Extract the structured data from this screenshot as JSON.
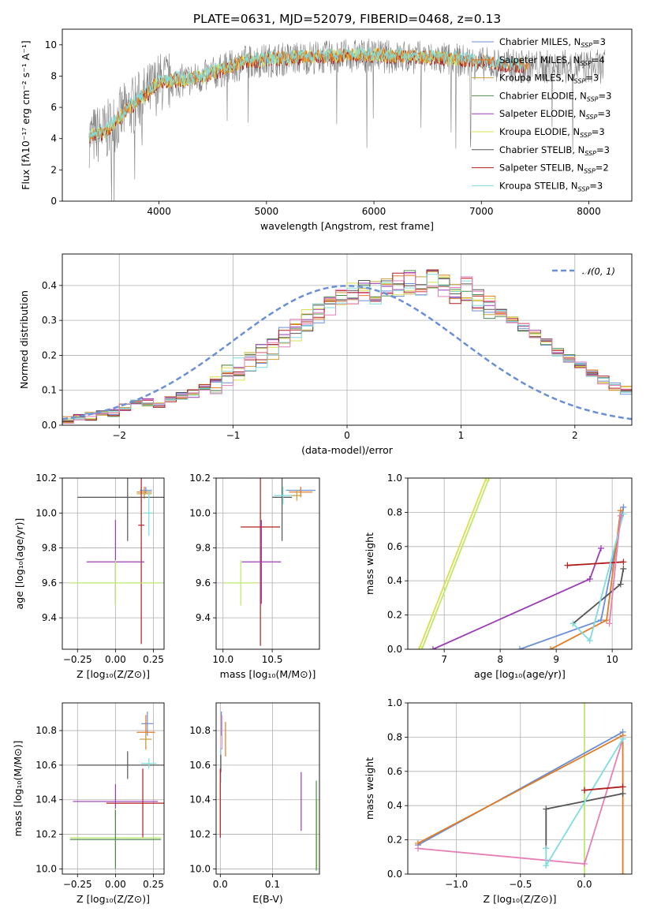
{
  "title": "PLATE=0631, MJD=52079, FIBERID=0468, z=0.13",
  "colors": {
    "chabrier_miles": "#6a8fd6",
    "salpeter_miles": "#e07b24",
    "kroupa_miles": "#c8a13a",
    "chabrier_elodie": "#4e8c4e",
    "salpeter_elodie": "#9b3bb5",
    "kroupa_elodie": "#d9e04a",
    "chabrier_stelib": "#555555",
    "salpeter_stelib": "#b01e1e",
    "kroupa_stelib": "#7fdcdc",
    "lime": "#bde86a",
    "pink": "#e57fb6",
    "gray_data": "#808080"
  },
  "chart_data": [
    {
      "id": "spectrum",
      "type": "line",
      "xlabel": "wavelength [Angstrom, rest frame]",
      "ylabel": "Flux [fλ10⁻¹⁷ erg cm⁻² s⁻¹ A⁻¹]",
      "xlim": [
        3100,
        8400
      ],
      "ylim": [
        0,
        11
      ],
      "xticks": [
        "4000",
        "5000",
        "6000",
        "7000",
        "8000"
      ],
      "yticks": [
        "0",
        "2",
        "4",
        "6",
        "8",
        "10"
      ],
      "legend_position": "right",
      "legend": [
        "Chabrier MILES, N_SSP=3",
        "Salpeter MILES, N_SSP=4",
        "Kroupa MILES, N_SSP=3",
        "Chabrier ELODIE, N_SSP=3",
        "Salpeter ELODIE, N_SSP=3",
        "Kroupa ELODIE, N_SSP=3",
        "Chabrier STELIB, N_SSP=3",
        "Salpeter STELIB, N_SSP=2",
        "Kroupa STELIB, N_SSP=3"
      ],
      "model_x": [
        3350,
        3500,
        3700,
        3900,
        4000,
        4200,
        4400,
        4600,
        4800,
        5000,
        5200,
        5400,
        5600,
        5800,
        6000,
        6200,
        6400,
        6600,
        6800,
        7000,
        7200,
        7400
      ],
      "model_y": [
        4.1,
        4.4,
        5.8,
        6.9,
        7.6,
        7.7,
        7.9,
        8.4,
        8.9,
        9.0,
        9.1,
        9.2,
        9.2,
        9.3,
        9.3,
        9.2,
        9.2,
        9.1,
        9.0,
        8.8,
        8.7,
        8.6
      ]
    },
    {
      "id": "residual_hist",
      "type": "area",
      "xlabel": "(data-model)/error",
      "ylabel": "Normed distribution",
      "xlim": [
        -2.5,
        2.5
      ],
      "ylim": [
        0,
        0.49
      ],
      "xticks": [
        "−2",
        "−1",
        "0",
        "1",
        "2"
      ],
      "yticks": [
        "0.0",
        "0.1",
        "0.2",
        "0.3",
        "0.4"
      ],
      "grid": true,
      "legend_position": "top-right",
      "legend": "𝒩(0, 1)",
      "bin_width": 0.1,
      "bins_from": -2.5,
      "hist_values": [
        0.015,
        0.02,
        0.025,
        0.03,
        0.035,
        0.05,
        0.06,
        0.065,
        0.06,
        0.075,
        0.085,
        0.09,
        0.11,
        0.12,
        0.14,
        0.16,
        0.18,
        0.2,
        0.22,
        0.245,
        0.27,
        0.3,
        0.32,
        0.34,
        0.36,
        0.38,
        0.39,
        0.38,
        0.4,
        0.4,
        0.41,
        0.39,
        0.41,
        0.4,
        0.38,
        0.39,
        0.36,
        0.34,
        0.32,
        0.3,
        0.28,
        0.26,
        0.24,
        0.21,
        0.19,
        0.17,
        0.15,
        0.13,
        0.11,
        0.1
      ],
      "normal_mean": 0,
      "normal_sigma": 1
    },
    {
      "id": "age_vs_Z",
      "type": "scatter",
      "xlabel": "Z [log₁₀(Z/Z⊙)]",
      "ylabel": "age  [log₁₀(age/yr)]",
      "xlim": [
        -0.35,
        0.32
      ],
      "ylim": [
        9.22,
        10.2
      ],
      "xticks": [
        "−0.25",
        "0.00",
        "0.25"
      ],
      "yticks": [
        "9.4",
        "9.6",
        "9.8",
        "10.0",
        "10.2"
      ],
      "grid": true,
      "points": [
        {
          "key": "chabrier_miles",
          "x": 0.2,
          "xerr": 0.04,
          "y": 10.13,
          "yerr": 0.02
        },
        {
          "key": "salpeter_miles",
          "x": 0.19,
          "xerr": 0.05,
          "y": 10.12,
          "yerr": 0.03
        },
        {
          "key": "kroupa_miles",
          "x": 0.19,
          "xerr": 0.05,
          "y": 10.11,
          "yerr": 0.03
        },
        {
          "key": "chabrier_stelib",
          "x": 0.08,
          "xerr": 0.33,
          "y": 10.09,
          "yerr": 0.25
        },
        {
          "key": "salpeter_stelib",
          "x": 0.17,
          "xerr": 0.02,
          "y": 9.93,
          "yerr": 0.68
        },
        {
          "key": "kroupa_stelib",
          "x": 0.22,
          "xerr": 0.03,
          "y": 10.0,
          "yerr": 0.13
        },
        {
          "key": "salpeter_elodie",
          "x": 0.0,
          "xerr": 0.19,
          "y": 9.72,
          "yerr": 0.24
        },
        {
          "key": "lime",
          "x": 0.0,
          "xerr": 0.3,
          "y": 9.6,
          "yerr": 0.13
        }
      ]
    },
    {
      "id": "age_vs_mass",
      "type": "scatter",
      "xlabel": "mass [log₁₀(M/M⊙)]",
      "xlim": [
        9.93,
        10.98
      ],
      "ylim": [
        9.22,
        10.2
      ],
      "xticks": [
        "10.0",
        "10.5"
      ],
      "yticks": [
        "9.4",
        "9.6",
        "9.8",
        "10.0",
        "10.2"
      ],
      "grid": true,
      "points": [
        {
          "key": "chabrier_miles",
          "x": 10.79,
          "xerr": 0.15,
          "y": 10.13,
          "yerr": 0.02
        },
        {
          "key": "salpeter_miles",
          "x": 10.79,
          "xerr": 0.12,
          "y": 10.12,
          "yerr": 0.03
        },
        {
          "key": "kroupa_miles",
          "x": 10.75,
          "xerr": 0.05,
          "y": 10.1,
          "yerr": 0.03
        },
        {
          "key": "chabrier_stelib",
          "x": 10.6,
          "xerr": 0.1,
          "y": 10.09,
          "yerr": 0.25
        },
        {
          "key": "salpeter_stelib",
          "x": 10.38,
          "xerr": 0.2,
          "y": 9.92,
          "yerr": 0.68
        },
        {
          "key": "kroupa_stelib",
          "x": 10.61,
          "xerr": 0.09,
          "y": 10.1,
          "yerr": 0.05
        },
        {
          "key": "salpeter_elodie",
          "x": 10.39,
          "xerr": 0.2,
          "y": 9.72,
          "yerr": 0.24
        },
        {
          "key": "lime",
          "x": 10.18,
          "xerr": 0.17,
          "y": 9.6,
          "yerr": 0.13
        }
      ]
    },
    {
      "id": "weight_vs_age",
      "type": "line",
      "xlabel": "age  [log₁₀(age/yr)]",
      "ylabel": "mass weight",
      "xlim": [
        6.35,
        10.35
      ],
      "ylim": [
        0,
        1
      ],
      "xticks": [
        "7",
        "8",
        "9",
        "10"
      ],
      "yticks": [
        "0.0",
        "0.2",
        "0.4",
        "0.6",
        "0.8",
        "1.0"
      ],
      "grid": true,
      "series": [
        {
          "key": "kroupa_elodie",
          "x": [
            6.55,
            7.75
          ],
          "y": [
            0.0,
            1.0
          ]
        },
        {
          "key": "lime",
          "x": [
            6.6,
            7.8
          ],
          "y": [
            0.0,
            1.0
          ]
        },
        {
          "key": "salpeter_elodie",
          "x": [
            6.8,
            9.6,
            9.8
          ],
          "y": [
            0.0,
            0.41,
            0.59
          ]
        },
        {
          "key": "chabrier_miles",
          "x": [
            8.35,
            9.8,
            10.2
          ],
          "y": [
            0.0,
            0.17,
            0.83
          ]
        },
        {
          "key": "salpeter_miles",
          "x": [
            8.9,
            9.9,
            10.15
          ],
          "y": [
            0.0,
            0.17,
            0.81
          ]
        },
        {
          "key": "chabrier_stelib",
          "x": [
            9.3,
            10.15,
            10.2
          ],
          "y": [
            0.15,
            0.38,
            0.47
          ]
        },
        {
          "key": "salpeter_stelib",
          "x": [
            9.2,
            10.2
          ],
          "y": [
            0.49,
            0.51
          ]
        },
        {
          "key": "kroupa_stelib",
          "x": [
            9.3,
            9.6,
            10.2
          ],
          "y": [
            0.15,
            0.05,
            0.79
          ]
        },
        {
          "key": "pink",
          "x": [
            9.95,
            10.15
          ],
          "y": [
            0.15,
            0.78
          ]
        }
      ]
    },
    {
      "id": "mass_vs_Z",
      "type": "scatter",
      "xlabel": "Z [log₁₀(Z/Z⊙)]",
      "ylabel": "mass [log₁₀(M/M⊙)]",
      "xlim": [
        -0.35,
        0.32
      ],
      "ylim": [
        9.97,
        10.96
      ],
      "xticks": [
        "−0.25",
        "0.00",
        "0.25"
      ],
      "yticks": [
        "10.0",
        "10.2",
        "10.4",
        "10.6",
        "10.8"
      ],
      "grid": true,
      "points": [
        {
          "key": "chabrier_miles",
          "x": 0.21,
          "xerr": 0.04,
          "y": 10.84,
          "yerr": 0.07
        },
        {
          "key": "salpeter_miles",
          "x": 0.2,
          "xerr": 0.06,
          "y": 10.79,
          "yerr": 0.1
        },
        {
          "key": "kroupa_miles",
          "x": 0.2,
          "xerr": 0.04,
          "y": 10.75,
          "yerr": 0.04
        },
        {
          "key": "chabrier_stelib",
          "x": 0.08,
          "xerr": 0.33,
          "y": 10.6,
          "yerr": 0.08
        },
        {
          "key": "kroupa_stelib",
          "x": 0.22,
          "xerr": 0.05,
          "y": 10.61,
          "yerr": 0.03
        },
        {
          "key": "salpeter_stelib",
          "x": 0.18,
          "xerr": 0.24,
          "y": 10.38,
          "yerr": 0.2
        },
        {
          "key": "salpeter_elodie",
          "x": 0.0,
          "xerr": 0.28,
          "y": 10.39,
          "yerr": 0.1
        },
        {
          "key": "lime",
          "x": 0.0,
          "xerr": 0.3,
          "y": 10.18,
          "yerr": 0.17
        },
        {
          "key": "chabrier_elodie",
          "x": 0.0,
          "xerr": 0.3,
          "y": 10.17,
          "yerr": 0.17
        }
      ]
    },
    {
      "id": "mass_vs_ebv",
      "type": "scatter",
      "xlabel": "E(B-V)",
      "xlim": [
        -0.008,
        0.19
      ],
      "ylim": [
        9.97,
        10.96
      ],
      "xticks": [
        "0.0",
        "0.1"
      ],
      "yticks": [
        "10.0",
        "10.2",
        "10.4",
        "10.6",
        "10.8"
      ],
      "grid": true,
      "points": [
        {
          "key": "salpeter_miles",
          "x": 0.01,
          "xerr": 0,
          "y": 10.75,
          "yerr": 0.1
        },
        {
          "key": "chabrier_miles",
          "x": 0.002,
          "xerr": 0,
          "y": 10.84,
          "yerr": 0.07
        },
        {
          "key": "pink",
          "x": 0.003,
          "xerr": 0,
          "y": 10.79,
          "yerr": 0.1
        },
        {
          "key": "kroupa_stelib",
          "x": 0.001,
          "xerr": 0,
          "y": 10.6,
          "yerr": 0.1
        },
        {
          "key": "chabrier_stelib",
          "x": 0.001,
          "xerr": 0,
          "y": 10.61,
          "yerr": 0.05
        },
        {
          "key": "salpeter_stelib",
          "x": 0.0,
          "xerr": 0,
          "y": 10.38,
          "yerr": 0.2
        },
        {
          "key": "salpeter_elodie",
          "x": 0.155,
          "xerr": 0,
          "y": 10.39,
          "yerr": 0.17
        },
        {
          "key": "lime",
          "x": 0.185,
          "xerr": 0,
          "y": 10.2,
          "yerr": 0.2
        },
        {
          "key": "chabrier_elodie",
          "x": 0.184,
          "xerr": 0,
          "y": 10.25,
          "yerr": 0.26
        }
      ]
    },
    {
      "id": "weight_vs_Z",
      "type": "line",
      "xlabel": "Z [log₁₀(Z/Z⊙)]",
      "ylabel": "mass weight",
      "xlim": [
        -1.38,
        0.37
      ],
      "ylim": [
        0,
        1
      ],
      "xticks": [
        "−1.0",
        "−0.5",
        "0.0"
      ],
      "yticks": [
        "0.0",
        "0.2",
        "0.4",
        "0.6",
        "0.8",
        "1.0"
      ],
      "grid": true,
      "series": [
        {
          "key": "lime",
          "x": [
            0.0,
            0.0
          ],
          "y": [
            0.0,
            1.0
          ]
        },
        {
          "key": "chabrier_miles",
          "x": [
            -1.3,
            0.3
          ],
          "y": [
            0.17,
            0.83
          ]
        },
        {
          "key": "salpeter_miles",
          "x": [
            -1.3,
            0.3,
            0.3
          ],
          "y": [
            0.18,
            0.81,
            0.0
          ]
        },
        {
          "key": "pink",
          "x": [
            -1.3,
            0.0,
            0.3
          ],
          "y": [
            0.15,
            0.06,
            0.79
          ]
        },
        {
          "key": "chabrier_stelib",
          "x": [
            -0.3,
            -0.3,
            0.3
          ],
          "y": [
            0.15,
            0.38,
            0.47
          ]
        },
        {
          "key": "kroupa_stelib",
          "x": [
            -0.3,
            -0.3,
            0.3
          ],
          "y": [
            0.15,
            0.05,
            0.79
          ]
        },
        {
          "key": "salpeter_stelib",
          "x": [
            0.0,
            0.3
          ],
          "y": [
            0.49,
            0.51
          ]
        }
      ]
    }
  ]
}
